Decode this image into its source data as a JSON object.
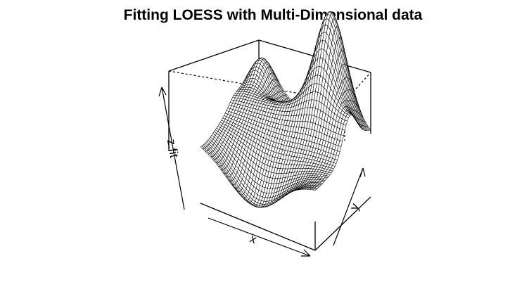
{
  "chart_data": {
    "type": "surface",
    "title": "Fitting LOESS with Multi-Dimensional data",
    "xlabel": "x",
    "ylabel": "y",
    "zlabel": "z.fit",
    "z_range": [
      0,
      1
    ],
    "grid_resolution": [
      46,
      46
    ],
    "surface_description": "wireframe perspective surface of the LOESS fit z.fit over x and y; a tall ridge at the back corner, a low valley along the front, and a smaller bump on the left edge"
  }
}
